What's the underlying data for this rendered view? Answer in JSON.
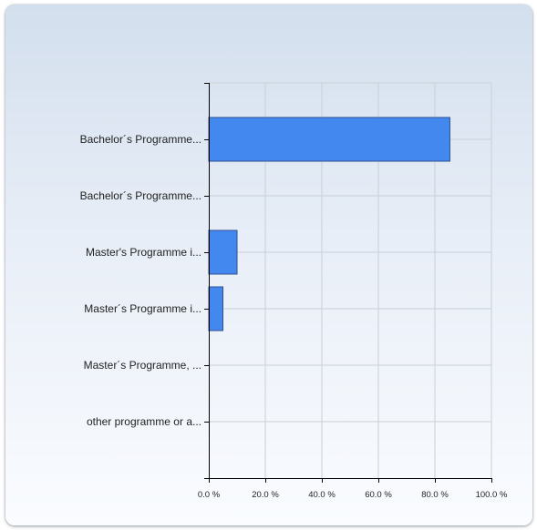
{
  "chart_data": {
    "type": "bar",
    "orientation": "horizontal",
    "categories": [
      "Bachelor´s Programme...",
      "Bachelor´s Programme...",
      "Master's Programme i...",
      "Master´s Programme i...",
      "Master´s Programme, ...",
      "other programme or a..."
    ],
    "values": [
      85.3,
      0,
      10.0,
      5.0,
      0,
      0
    ],
    "xlim": [
      0,
      100
    ],
    "x_ticks": [
      "0.0 %",
      "20.0 %",
      "40.0 %",
      "60.0 %",
      "80.0 %",
      "100.0 %"
    ],
    "grid": true,
    "bar_color": "#4388ee",
    "bar_edge_color": "#2f4f8f",
    "title": "",
    "xlabel": "",
    "ylabel": ""
  }
}
